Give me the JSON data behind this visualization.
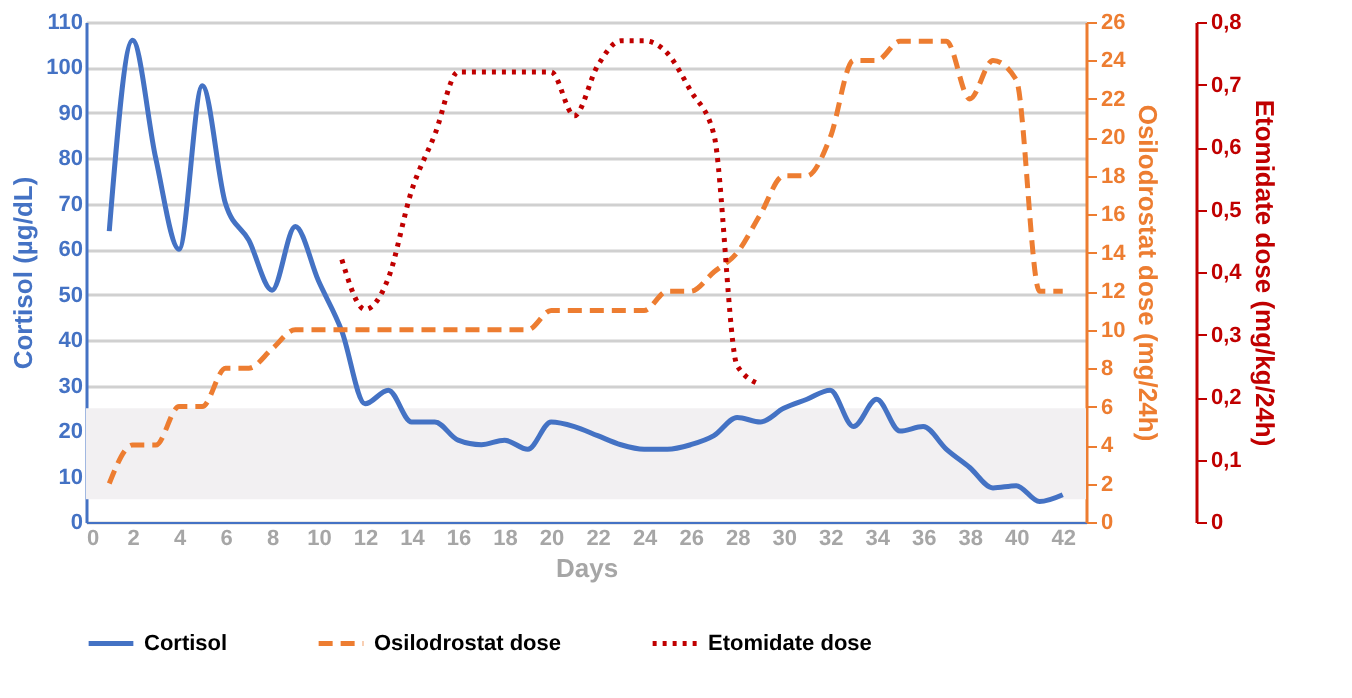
{
  "chart_data": {
    "type": "line",
    "xlabel": "Days",
    "ylabel": "Cortisol (µg/dL)",
    "y2label": "Osilodrostat dose (mg/24h)",
    "y3label": "Etomidate dose  (mg/kg/24h)",
    "xlim": [
      0,
      43
    ],
    "xticks": [
      0,
      2,
      4,
      6,
      8,
      10,
      12,
      14,
      16,
      18,
      20,
      22,
      24,
      26,
      28,
      30,
      32,
      34,
      36,
      38,
      40,
      42
    ],
    "ylim": [
      0,
      110
    ],
    "yticks": [
      0,
      10,
      20,
      30,
      40,
      50,
      60,
      70,
      80,
      90,
      100,
      110
    ],
    "y2lim": [
      0,
      26
    ],
    "y2ticks": [
      0,
      2,
      4,
      6,
      8,
      10,
      12,
      14,
      16,
      18,
      20,
      22,
      24,
      26
    ],
    "y3lim": [
      0,
      0.8
    ],
    "y3ticks": [
      0,
      {
        "value": 0.1,
        "label": "0,1"
      },
      {
        "value": 0.2,
        "label": "0,2"
      },
      {
        "value": 0.3,
        "label": "0,3"
      },
      {
        "value": 0.4,
        "label": "0,4"
      },
      {
        "value": 0.5,
        "label": "0,5"
      },
      {
        "value": 0.6,
        "label": "0,6"
      },
      {
        "value": 0.7,
        "label": "0,7"
      },
      {
        "value": 0.8,
        "label": "0,8"
      }
    ],
    "grid": "y",
    "legend": "bottom",
    "marker": "none",
    "bands": [
      {
        "axis": "y",
        "from": 5,
        "to": 25,
        "color": "#f2f0f2"
      }
    ],
    "series": [
      {
        "name": "Cortisol",
        "color": "#4472c4",
        "line_style": "solid",
        "axis": "y",
        "x": [
          1,
          2,
          3,
          4,
          5,
          6,
          7,
          8,
          9,
          10,
          11,
          12,
          13,
          14,
          15,
          16,
          17,
          18,
          19,
          20,
          21,
          22,
          23,
          24,
          25,
          26,
          27,
          28,
          29,
          30,
          31,
          32,
          33,
          34,
          35,
          36,
          37,
          38,
          39,
          40,
          41,
          42
        ],
        "values": [
          64,
          106,
          80,
          60,
          96,
          70,
          62,
          51,
          65,
          53,
          42,
          26,
          29,
          22,
          22,
          18,
          17,
          18,
          16,
          22,
          21,
          19,
          17,
          16,
          16,
          17,
          19,
          23,
          22,
          25,
          27,
          29,
          21,
          27,
          20,
          21,
          16,
          12,
          7.5,
          8,
          4.5,
          6
        ]
      },
      {
        "name": "Osilodrostat dose",
        "color": "#ed7d31",
        "line_style": "dashed",
        "axis": "y2",
        "x": [
          1,
          2,
          3,
          4,
          5,
          6,
          7,
          8,
          9,
          10,
          11,
          12,
          13,
          14,
          15,
          16,
          17,
          18,
          19,
          20,
          21,
          22,
          23,
          24,
          25,
          26,
          27,
          28,
          29,
          30,
          31,
          32,
          33,
          34,
          35,
          36,
          37,
          38,
          39,
          40,
          41,
          42
        ],
        "values": [
          2,
          4,
          4,
          6,
          6,
          8,
          8,
          9,
          10,
          10,
          10,
          10,
          10,
          10,
          10,
          10,
          10,
          10,
          10,
          11,
          11,
          11,
          11,
          11,
          12,
          12,
          13,
          14,
          16,
          18,
          18,
          20,
          24,
          24,
          25,
          25,
          25,
          22,
          24,
          23,
          12,
          12
        ]
      },
      {
        "name": "Etomidate dose",
        "color": "#c00000",
        "line_style": "dotted",
        "axis": "y3",
        "x": [
          11,
          12,
          13,
          14,
          15,
          16,
          17,
          18,
          19,
          20,
          21,
          22,
          23,
          24,
          25,
          26,
          27,
          28,
          29
        ],
        "values": [
          0.42,
          0.34,
          0.39,
          0.53,
          0.62,
          0.72,
          0.72,
          0.72,
          0.72,
          0.72,
          0.65,
          0.73,
          0.77,
          0.77,
          0.75,
          0.69,
          0.62,
          0.25,
          0.22
        ]
      }
    ]
  }
}
